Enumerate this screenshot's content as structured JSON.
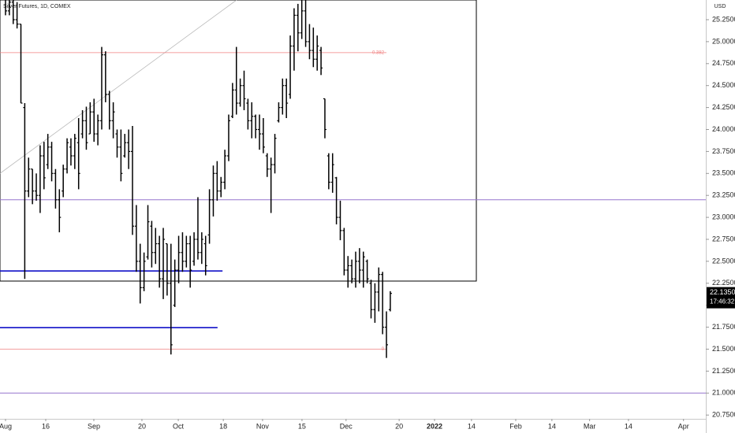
{
  "chart_data": {
    "type": "ohlc",
    "title": "Silver Futures, 1D, COMEX",
    "currency": "USD",
    "color": "#000000",
    "ohlc": [
      [
        25.5,
        25.6,
        25.3,
        25.35
      ],
      [
        25.35,
        25.55,
        25.3,
        25.45
      ],
      [
        25.45,
        25.5,
        25.2,
        25.25
      ],
      [
        25.25,
        25.45,
        25.15,
        25.2
      ],
      [
        25.2,
        25.2,
        24.3,
        24.3
      ],
      [
        24.25,
        24.3,
        22.3,
        23.3
      ],
      [
        23.3,
        23.68,
        23.23,
        23.55
      ],
      [
        23.55,
        23.55,
        23.15,
        23.3
      ],
      [
        23.3,
        23.5,
        23.19,
        23.25
      ],
      [
        23.25,
        23.82,
        23.05,
        23.7
      ],
      [
        23.7,
        23.86,
        23.32,
        23.45
      ],
      [
        23.6,
        23.95,
        23.55,
        23.8
      ],
      [
        23.8,
        23.86,
        23.41,
        23.5
      ],
      [
        23.5,
        23.55,
        23.1,
        23.2
      ],
      [
        23.2,
        23.32,
        22.83,
        23.0
      ],
      [
        23.3,
        23.6,
        23.23,
        23.55
      ],
      [
        23.55,
        23.9,
        23.5,
        23.85
      ],
      [
        23.8,
        23.9,
        23.59,
        23.7
      ],
      [
        23.7,
        23.95,
        23.55,
        23.9
      ],
      [
        23.85,
        24.13,
        23.32,
        23.5
      ],
      [
        23.95,
        24.22,
        23.9,
        24.1
      ],
      [
        24.1,
        24.26,
        23.77,
        23.85
      ],
      [
        23.95,
        24.31,
        23.95,
        24.2
      ],
      [
        24.2,
        24.35,
        23.86,
        23.95
      ],
      [
        23.95,
        24.17,
        23.82,
        24.1
      ],
      [
        24.1,
        24.94,
        24.0,
        24.85
      ],
      [
        24.85,
        24.89,
        24.31,
        24.4
      ],
      [
        24.4,
        24.44,
        24.0,
        24.1
      ],
      [
        24.1,
        24.31,
        23.9,
        24.2
      ],
      [
        23.95,
        24.0,
        23.68,
        23.8
      ],
      [
        23.8,
        24.0,
        23.41,
        23.5
      ],
      [
        23.7,
        23.95,
        23.68,
        23.85
      ],
      [
        23.85,
        24.0,
        23.55,
        23.75
      ],
      [
        23.75,
        24.04,
        22.8,
        22.9
      ],
      [
        22.9,
        23.14,
        22.38,
        22.5
      ],
      [
        22.5,
        22.7,
        22.02,
        22.2
      ],
      [
        22.2,
        22.6,
        22.16,
        22.5
      ],
      [
        22.55,
        23.14,
        22.52,
        22.95
      ],
      [
        22.9,
        22.96,
        22.43,
        22.6
      ],
      [
        22.6,
        22.88,
        22.47,
        22.7
      ],
      [
        22.7,
        22.79,
        22.2,
        22.3
      ],
      [
        22.3,
        22.88,
        22.07,
        22.75
      ],
      [
        22.7,
        22.7,
        22.11,
        22.25
      ],
      [
        22.25,
        22.7,
        21.44,
        21.55
      ],
      [
        22.0,
        22.52,
        21.98,
        22.4
      ],
      [
        22.4,
        22.79,
        22.25,
        22.6
      ],
      [
        22.6,
        22.83,
        22.38,
        22.5
      ],
      [
        22.5,
        22.79,
        22.43,
        22.7
      ],
      [
        22.7,
        22.79,
        22.2,
        22.4
      ],
      [
        22.5,
        22.83,
        22.45,
        22.75
      ],
      [
        22.75,
        23.23,
        22.52,
        22.6
      ],
      [
        22.6,
        22.83,
        22.47,
        22.75
      ],
      [
        22.7,
        22.79,
        22.34,
        22.45
      ],
      [
        22.8,
        23.32,
        22.7,
        23.2
      ],
      [
        23.2,
        23.59,
        23.01,
        23.5
      ],
      [
        23.5,
        23.64,
        23.19,
        23.3
      ],
      [
        23.3,
        23.46,
        23.23,
        23.4
      ],
      [
        23.4,
        23.77,
        23.32,
        23.7
      ],
      [
        23.7,
        24.17,
        23.64,
        24.1
      ],
      [
        24.15,
        24.53,
        24.13,
        24.45
      ],
      [
        24.45,
        24.94,
        24.17,
        24.3
      ],
      [
        24.3,
        24.58,
        24.26,
        24.5
      ],
      [
        24.5,
        24.67,
        24.22,
        24.35
      ],
      [
        24.3,
        24.35,
        24.0,
        24.1
      ],
      [
        24.1,
        24.31,
        23.9,
        24.15
      ],
      [
        24.15,
        24.17,
        23.9,
        24.0
      ],
      [
        24.0,
        24.17,
        23.77,
        23.95
      ],
      [
        23.95,
        24.13,
        23.73,
        23.8
      ],
      [
        23.7,
        23.73,
        23.46,
        23.55
      ],
      [
        23.55,
        23.68,
        23.05,
        23.6
      ],
      [
        23.6,
        23.95,
        23.5,
        23.9
      ],
      [
        24.1,
        24.31,
        24.08,
        24.25
      ],
      [
        24.25,
        24.58,
        24.17,
        24.5
      ],
      [
        24.5,
        24.58,
        24.13,
        24.3
      ],
      [
        24.4,
        25.07,
        24.35,
        24.95
      ],
      [
        24.95,
        25.38,
        24.67,
        25.3
      ],
      [
        25.3,
        25.43,
        24.89,
        25.1
      ],
      [
        25.1,
        25.47,
        25.03,
        25.35
      ],
      [
        25.35,
        25.47,
        24.94,
        25.0
      ],
      [
        25.0,
        25.2,
        24.8,
        24.9
      ],
      [
        24.9,
        25.16,
        24.71,
        24.8
      ],
      [
        24.8,
        25.07,
        24.67,
        24.95
      ],
      [
        24.9,
        24.94,
        24.62,
        24.7
      ],
      [
        24.35,
        24.35,
        23.9,
        24.0
      ],
      [
        23.7,
        23.73,
        23.32,
        23.4
      ],
      [
        23.4,
        23.73,
        23.28,
        23.6
      ],
      [
        23.45,
        23.46,
        22.92,
        23.0
      ],
      [
        23.0,
        23.19,
        22.74,
        22.85
      ],
      [
        22.85,
        22.88,
        22.34,
        22.4
      ],
      [
        22.4,
        22.56,
        22.2,
        22.45
      ],
      [
        22.45,
        22.52,
        22.25,
        22.3
      ],
      [
        22.3,
        22.61,
        22.2,
        22.5
      ],
      [
        22.5,
        22.65,
        22.25,
        22.4
      ],
      [
        22.4,
        22.61,
        22.2,
        22.55
      ],
      [
        22.5,
        22.52,
        22.25,
        22.3
      ],
      [
        22.25,
        22.29,
        21.85,
        21.95
      ],
      [
        21.95,
        22.25,
        21.8,
        22.15
      ],
      [
        22.15,
        22.43,
        21.93,
        22.35
      ],
      [
        22.35,
        22.38,
        21.67,
        21.75
      ],
      [
        21.75,
        21.93,
        21.4,
        21.55
      ],
      [
        21.95,
        22.16,
        21.93,
        22.135
      ]
    ],
    "last_price": {
      "value": 22.135,
      "label": "22.1350"
    },
    "countdown": "17:46:32",
    "xlim": [
      -1.434,
      182
    ],
    "ylim": [
      20.707,
      25.474
    ],
    "xticks": [
      {
        "value": 0,
        "label": "Aug"
      },
      {
        "value": 10.45,
        "label": "16"
      },
      {
        "value": 22.95,
        "label": "Sep"
      },
      {
        "value": 35.45,
        "label": "20"
      },
      {
        "value": 44.9,
        "label": "Oct"
      },
      {
        "value": 56.6,
        "label": "18"
      },
      {
        "value": 66.8,
        "label": "Nov"
      },
      {
        "value": 77.05,
        "label": "15"
      },
      {
        "value": 88.5,
        "label": "Dec"
      },
      {
        "value": 102.3,
        "label": "20"
      },
      {
        "value": 111.5,
        "label": "2022"
      },
      {
        "value": 121.1,
        "label": "14"
      },
      {
        "value": 132.6,
        "label": "Feb"
      },
      {
        "value": 142,
        "label": "14"
      },
      {
        "value": 151.8,
        "label": "Mar"
      },
      {
        "value": 161.9,
        "label": "14"
      },
      {
        "value": 176.2,
        "label": "Apr"
      }
    ],
    "yticks": [
      {
        "value": 20.75,
        "label": "20.7500"
      },
      {
        "value": 21,
        "label": "21.0000"
      },
      {
        "value": 21.25,
        "label": "21.2500"
      },
      {
        "value": 21.5,
        "label": "21.5000"
      },
      {
        "value": 21.75,
        "label": "21.7500"
      },
      {
        "value": 22,
        "label": "22.0000"
      },
      {
        "value": 22.25,
        "label": "22.2500"
      },
      {
        "value": 22.5,
        "label": "22.5000"
      },
      {
        "value": 22.75,
        "label": "22.7500"
      },
      {
        "value": 23,
        "label": "23.0000"
      },
      {
        "value": 23.25,
        "label": "23.2500"
      },
      {
        "value": 23.5,
        "label": "23.5000"
      },
      {
        "value": 23.75,
        "label": "23.7500"
      },
      {
        "value": 24,
        "label": "24.0000"
      },
      {
        "value": 24.25,
        "label": "24.2500"
      },
      {
        "value": 24.5,
        "label": "24.5000"
      },
      {
        "value": 24.75,
        "label": "24.7500"
      },
      {
        "value": 25,
        "label": "25.0000"
      },
      {
        "value": 25.25,
        "label": "25.2500"
      }
    ],
    "hlines": [
      {
        "value": 23.2,
        "color": "#9575cd",
        "x_end": 182
      },
      {
        "value": 21.0,
        "color": "#9575cd",
        "x_end": 182
      },
      {
        "value": 22.39,
        "color": "#1010c8",
        "x_end": 56.4
      },
      {
        "value": 21.745,
        "color": "#1010c8",
        "x_end": 55.1
      }
    ],
    "fib_levels": [
      {
        "level": 0.382,
        "value": 24.875,
        "color": "#f08080",
        "x_end": 99
      },
      {
        "level": 0,
        "value": 21.5,
        "color": "#f08080",
        "x_end": 99
      }
    ],
    "rectangle": {
      "x": [
        -1.434,
        122.36
      ],
      "y": [
        22.275,
        25.474
      ]
    },
    "trendline": {
      "x": [
        -1.434,
        60.05
      ],
      "y": [
        23.5,
        25.474
      ]
    }
  }
}
